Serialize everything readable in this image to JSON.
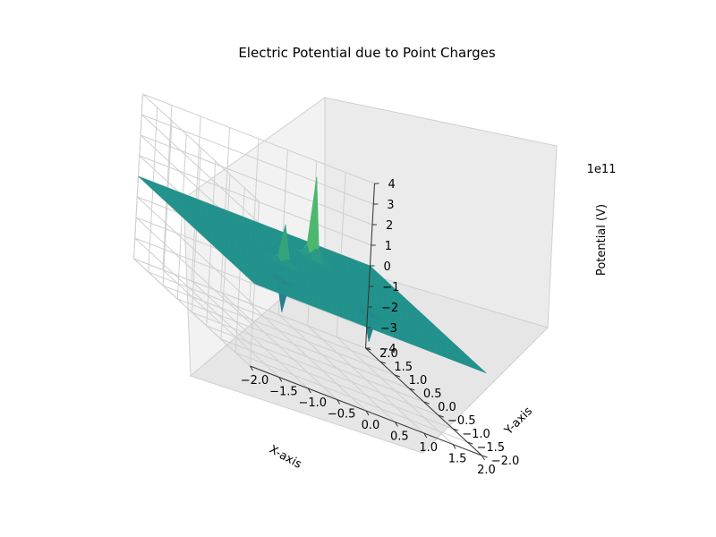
{
  "chart_data": {
    "type": "surface3d",
    "title": "Electric Potential due to Point Charges",
    "xlabel": "X-axis",
    "ylabel": "Y-axis",
    "zlabel": "Potential (V)",
    "z_offset_label": "1e11",
    "x_ticks": [
      "−2.0",
      "−1.5",
      "−1.0",
      "−0.5",
      "0.0",
      "0.5",
      "1.0",
      "1.5",
      "2.0"
    ],
    "y_ticks": [
      "−2.0",
      "−1.5",
      "−1.0",
      "−0.5",
      "0.0",
      "0.5",
      "1.0",
      "1.5",
      "2.0"
    ],
    "z_ticks": [
      "−4",
      "−3",
      "−2",
      "−1",
      "0",
      "1",
      "2",
      "3",
      "4"
    ],
    "xlim": [
      -2,
      2
    ],
    "ylim": [
      -2,
      2
    ],
    "zlim": [
      -4,
      4
    ],
    "z_unit_scale": 100000000000.0,
    "colormap": "viridis",
    "grid": true,
    "charges": [
      {
        "x": 0.5,
        "y": 1.0,
        "peak": 4.0
      },
      {
        "x": -0.5,
        "y": 0.0,
        "peak": 1.9
      },
      {
        "x": -1.0,
        "y": -1.0,
        "peak": -1.6
      },
      {
        "x": 0.5,
        "y": -1.0,
        "peak": -1.4
      }
    ]
  }
}
